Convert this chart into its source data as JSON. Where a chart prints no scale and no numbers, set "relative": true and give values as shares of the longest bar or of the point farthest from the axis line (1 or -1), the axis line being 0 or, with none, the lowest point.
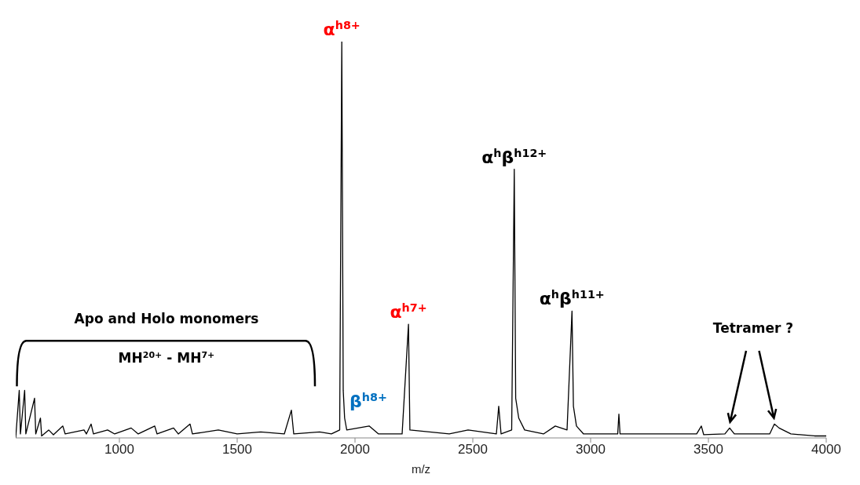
{
  "chart_data": {
    "type": "line",
    "relative": true,
    "xlabel": "m/z",
    "xlim": [
      560,
      4000
    ],
    "xticks": [
      1000,
      1500,
      2000,
      2500,
      3000,
      3500,
      4000
    ],
    "tick_labels": "x",
    "marker": "none",
    "line_style": "solid",
    "series": [
      {
        "color": "#000000",
        "x": [
          560,
          575,
          580,
          598,
          603,
          640,
          645,
          665,
          670,
          700,
          720,
          760,
          770,
          850,
          860,
          880,
          890,
          950,
          980,
          1050,
          1080,
          1150,
          1160,
          1230,
          1250,
          1300,
          1310,
          1420,
          1500,
          1600,
          1700,
          1730,
          1740,
          1850,
          1900,
          1935,
          1944,
          1950,
          1956,
          1965,
          2060,
          2100,
          2200,
          2227,
          2233,
          2400,
          2480,
          2600,
          2610,
          2620,
          2665,
          2676,
          2682,
          2695,
          2720,
          2800,
          2850,
          2900,
          2921,
          2927,
          2940,
          2970,
          3115,
          3120,
          3125,
          3450,
          3470,
          3480,
          3570,
          3590,
          3610,
          3760,
          3780,
          3800,
          3850,
          3950,
          4000
        ],
        "values": [
          0.0,
          0.12,
          0.01,
          0.12,
          0.01,
          0.1,
          0.01,
          0.05,
          0.005,
          0.02,
          0.008,
          0.03,
          0.01,
          0.02,
          0.01,
          0.035,
          0.01,
          0.02,
          0.01,
          0.025,
          0.01,
          0.03,
          0.01,
          0.025,
          0.01,
          0.035,
          0.01,
          0.02,
          0.01,
          0.015,
          0.01,
          0.07,
          0.01,
          0.015,
          0.01,
          0.02,
          1.0,
          0.12,
          0.05,
          0.02,
          0.03,
          0.01,
          0.01,
          0.287,
          0.02,
          0.01,
          0.02,
          0.01,
          0.08,
          0.01,
          0.02,
          0.678,
          0.1,
          0.05,
          0.02,
          0.01,
          0.03,
          0.02,
          0.32,
          0.08,
          0.03,
          0.01,
          0.01,
          0.06,
          0.01,
          0.01,
          0.03,
          0.008,
          0.01,
          0.025,
          0.01,
          0.01,
          0.035,
          0.025,
          0.01,
          0.005,
          0.005
        ]
      }
    ],
    "annotations": [
      {
        "text": "α$^{h8+}$",
        "x": 1944,
        "y": 1.0
      },
      {
        "text": "β$^{h8+}$",
        "x": 1950,
        "y": 0.12
      },
      {
        "text": "α$^{h7+}$",
        "x": 2227,
        "y": 0.287
      },
      {
        "text": "α$^{h}$β$^{h12+}$",
        "x": 2676,
        "y": 0.678
      },
      {
        "text": "α$^{h}$β$^{h11+}$",
        "x": 2921,
        "y": 0.32
      },
      "Apo and Holo monomers",
      "MH$^{20+}$ - MH$^{7+}$",
      "Tetramer ?"
    ]
  }
}
